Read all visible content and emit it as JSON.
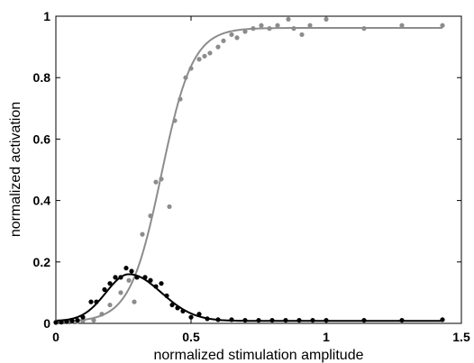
{
  "chart_data": {
    "type": "scatter",
    "title": "",
    "xlabel": "normalized stimulation amplitude",
    "ylabel": "normalized activation",
    "xlim": [
      0,
      1.5
    ],
    "ylim": [
      0,
      1
    ],
    "grid": false,
    "legend": "none",
    "x_ticks": [
      "0",
      "0.5",
      "1",
      "1.5"
    ],
    "y_ticks": [
      "0",
      "0.2",
      "0.4",
      "0.6",
      "0.8",
      "1"
    ],
    "series": [
      {
        "color": "#8c8c8c",
        "points": [
          [
            0.0,
            0.004
          ],
          [
            0.02,
            0.004
          ],
          [
            0.04,
            0.005
          ],
          [
            0.06,
            0.006
          ],
          [
            0.08,
            0.006
          ],
          [
            0.1,
            0.008
          ],
          [
            0.14,
            0.01
          ],
          [
            0.17,
            0.03
          ],
          [
            0.2,
            0.06
          ],
          [
            0.24,
            0.1
          ],
          [
            0.27,
            0.14
          ],
          [
            0.29,
            0.07
          ],
          [
            0.32,
            0.29
          ],
          [
            0.35,
            0.35
          ],
          [
            0.37,
            0.46
          ],
          [
            0.39,
            0.47
          ],
          [
            0.42,
            0.38
          ],
          [
            0.44,
            0.66
          ],
          [
            0.46,
            0.73
          ],
          [
            0.48,
            0.8
          ],
          [
            0.5,
            0.83
          ],
          [
            0.53,
            0.86
          ],
          [
            0.55,
            0.87
          ],
          [
            0.57,
            0.88
          ],
          [
            0.6,
            0.9
          ],
          [
            0.62,
            0.92
          ],
          [
            0.65,
            0.94
          ],
          [
            0.67,
            0.93
          ],
          [
            0.7,
            0.95
          ],
          [
            0.73,
            0.96
          ],
          [
            0.76,
            0.97
          ],
          [
            0.79,
            0.96
          ],
          [
            0.82,
            0.97
          ],
          [
            0.86,
            0.99
          ],
          [
            0.88,
            0.96
          ],
          [
            0.91,
            0.94
          ],
          [
            0.94,
            0.97
          ],
          [
            1.0,
            0.99
          ],
          [
            1.14,
            0.96
          ],
          [
            1.28,
            0.97
          ],
          [
            1.43,
            0.97
          ]
        ],
        "fit": {
          "model": "logistic",
          "top": 0.962,
          "bottom": 0.005,
          "midpoint": 0.39,
          "slope": 0.058
        }
      },
      {
        "color": "#000000",
        "points": [
          [
            0.0,
            0.003
          ],
          [
            0.02,
            0.004
          ],
          [
            0.04,
            0.006
          ],
          [
            0.06,
            0.008
          ],
          [
            0.08,
            0.01
          ],
          [
            0.1,
            0.02
          ],
          [
            0.13,
            0.07
          ],
          [
            0.15,
            0.07
          ],
          [
            0.18,
            0.11
          ],
          [
            0.2,
            0.13
          ],
          [
            0.22,
            0.15
          ],
          [
            0.24,
            0.15
          ],
          [
            0.26,
            0.18
          ],
          [
            0.28,
            0.17
          ],
          [
            0.3,
            0.15
          ],
          [
            0.33,
            0.15
          ],
          [
            0.35,
            0.14
          ],
          [
            0.37,
            0.12
          ],
          [
            0.39,
            0.13
          ],
          [
            0.41,
            0.09
          ],
          [
            0.43,
            0.06
          ],
          [
            0.45,
            0.05
          ],
          [
            0.47,
            0.04
          ],
          [
            0.5,
            0.02
          ],
          [
            0.53,
            0.03
          ],
          [
            0.56,
            0.015
          ],
          [
            0.6,
            0.012
          ],
          [
            0.65,
            0.012
          ],
          [
            0.7,
            0.01
          ],
          [
            0.75,
            0.01
          ],
          [
            0.8,
            0.01
          ],
          [
            0.85,
            0.01
          ],
          [
            0.9,
            0.01
          ],
          [
            0.95,
            0.01
          ],
          [
            1.0,
            0.01
          ],
          [
            1.14,
            0.01
          ],
          [
            1.28,
            0.01
          ],
          [
            1.43,
            0.012
          ]
        ],
        "fit": {
          "model": "skewed-bump",
          "baseline": 0.008,
          "peak": 0.16,
          "peak_x": 0.27,
          "rise_sd": 0.085,
          "fall_sd": 0.12
        }
      }
    ]
  }
}
